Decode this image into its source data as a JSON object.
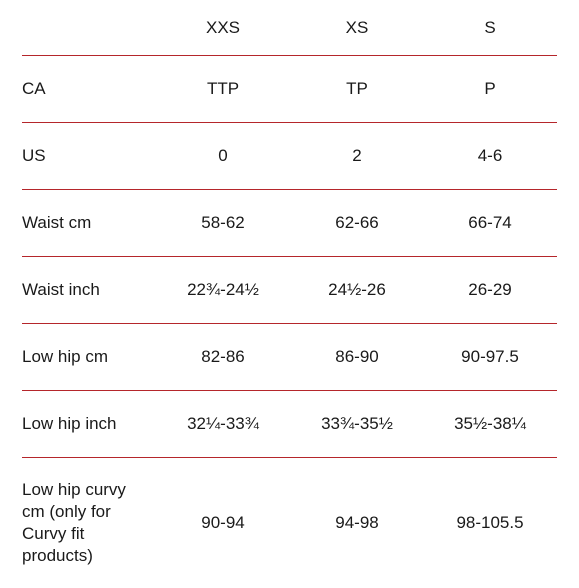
{
  "header": {
    "label": "",
    "sizes": [
      "XXS",
      "XS",
      "S"
    ]
  },
  "rows": [
    {
      "label": "CA",
      "values": [
        "TTP",
        "TP",
        "P"
      ]
    },
    {
      "label": "US",
      "values": [
        "0",
        "2",
        "4-6"
      ]
    },
    {
      "label": "Waist cm",
      "values": [
        "58-62",
        "62-66",
        "66-74"
      ]
    },
    {
      "label": "Waist inch",
      "values": [
        "22¾-24½",
        "24½-26",
        "26-29"
      ]
    },
    {
      "label": "Low hip cm",
      "values": [
        "82-86",
        "86-90",
        "90-97.5"
      ]
    },
    {
      "label": "Low hip inch",
      "values": [
        "32¼-33¾",
        "33¾-35½",
        "35½-38¼"
      ]
    },
    {
      "label": "Low hip curvy cm (only for Curvy fit products)",
      "values": [
        "90-94",
        "94-98",
        "98-105.5"
      ]
    }
  ],
  "colors": {
    "divider": "#b5262b",
    "text": "#1a1a1a"
  }
}
